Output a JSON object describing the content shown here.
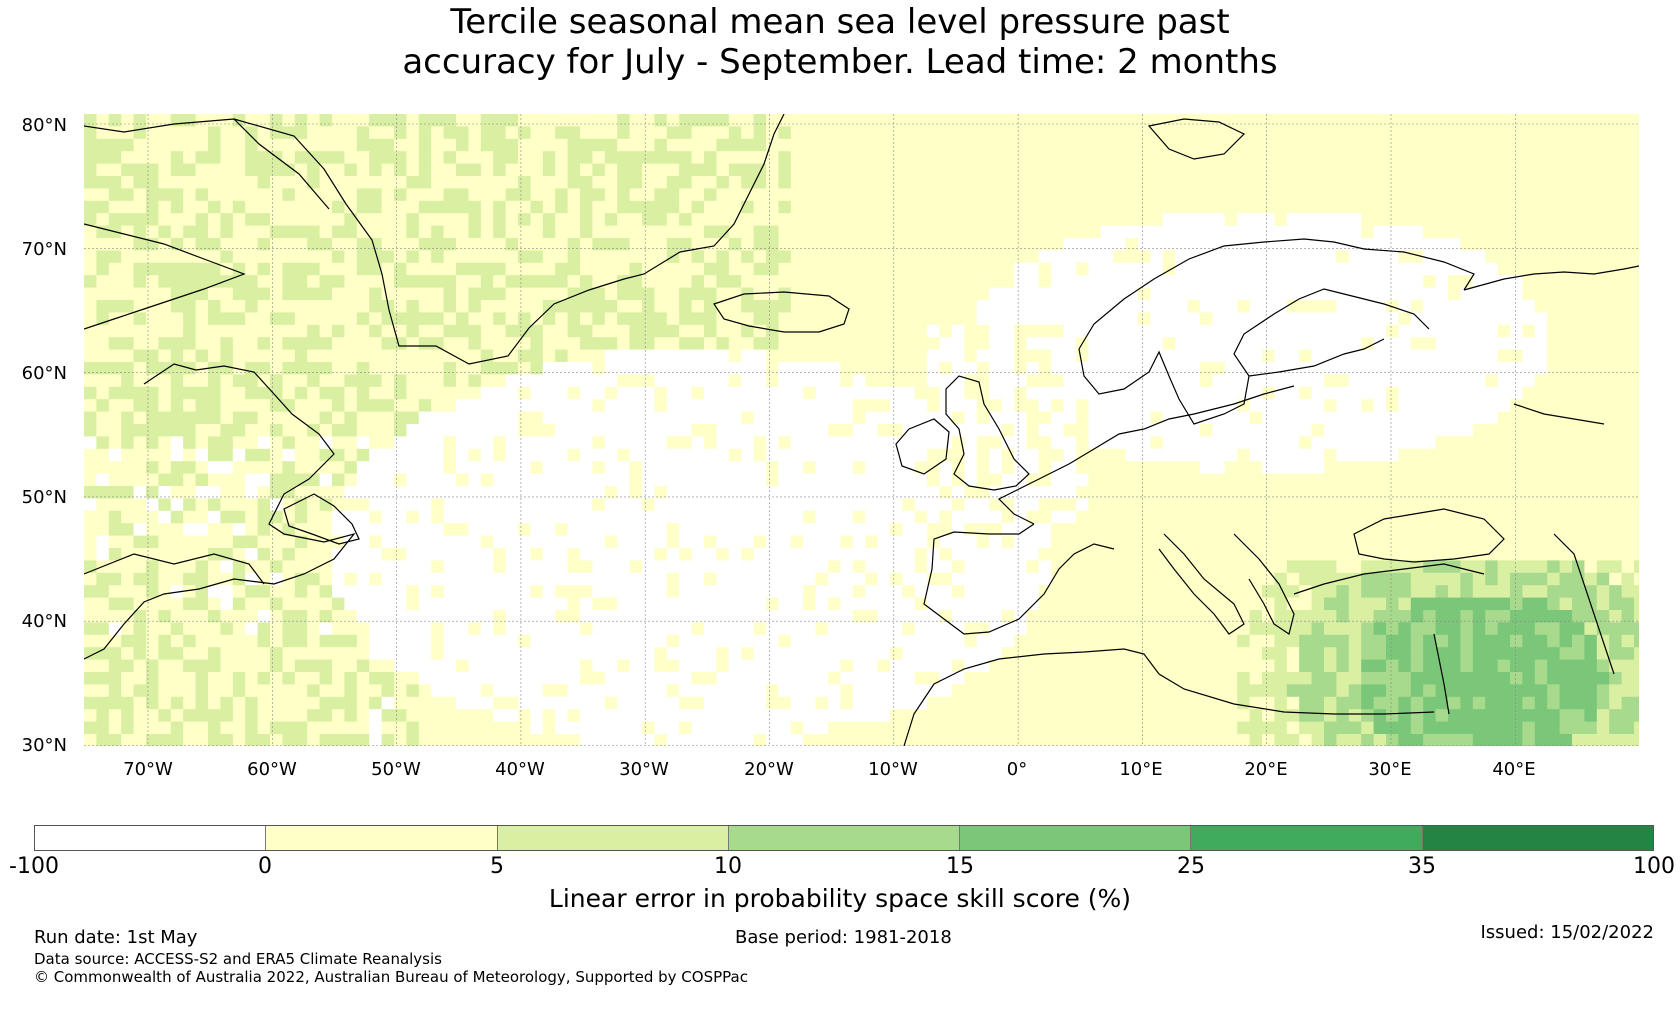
{
  "title": {
    "line1": "Tercile seasonal mean sea level pressure past",
    "line2": "accuracy for July - September. Lead time: 2 months"
  },
  "map": {
    "lat_labels": [
      "80°N",
      "70°N",
      "60°N",
      "50°N",
      "40°N",
      "30°N"
    ],
    "lon_labels": [
      "70°W",
      "60°W",
      "50°W",
      "40°W",
      "30°W",
      "20°W",
      "10°W",
      "0°",
      "10°E",
      "20°E",
      "30°E",
      "40°E"
    ],
    "gridlines": true,
    "colors": {
      "land_outline": "#000000"
    }
  },
  "colorbar": {
    "ticks": [
      "-100",
      "0",
      "5",
      "10",
      "15",
      "25",
      "35",
      "100"
    ],
    "colors": [
      "#ffffff",
      "#ffffc8",
      "#d9efa2",
      "#a7da8c",
      "#7ac77a",
      "#41ab5d",
      "#238443"
    ],
    "label": "Linear error in probability space skill score (%)"
  },
  "footer": {
    "run_date": "Run date: 1st May",
    "base_period": "Base period: 1981-2018",
    "issued": "Issued: 15/02/2022",
    "data_source": "Data source: ACCESS-S2 and ERA5 Climate Reanalysis",
    "copyright": "© Commonwealth of Australia 2022, Australian Bureau of Meteorology, Supported by COSPPac"
  }
}
